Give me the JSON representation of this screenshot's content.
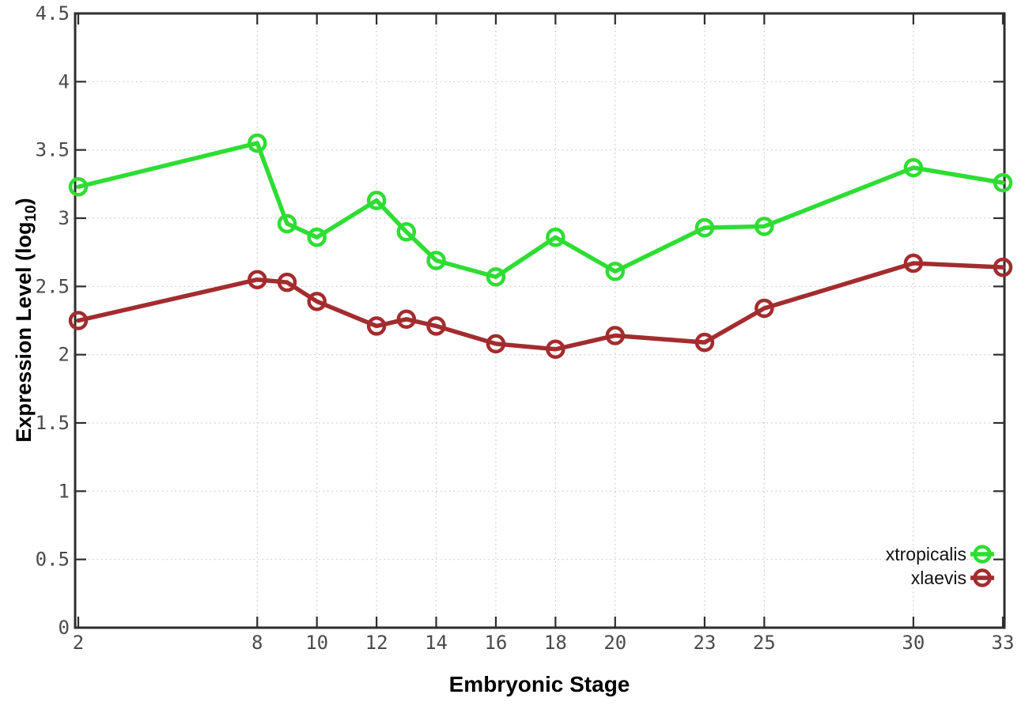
{
  "figure": {
    "background": "#ffffff"
  },
  "chart_data": {
    "type": "line",
    "title": "",
    "xlabel": "Embryonic Stage",
    "ylabel_prefix": "Expression Level (log",
    "ylabel_sub": "10",
    "ylabel_suffix": ")",
    "x": [
      2,
      8,
      9,
      10,
      12,
      13,
      14,
      16,
      18,
      20,
      23,
      25,
      30,
      33
    ],
    "series": [
      {
        "name": "xtropicalis",
        "color": "#2edd33",
        "values": [
          3.23,
          3.55,
          2.96,
          2.86,
          3.13,
          2.9,
          2.69,
          2.57,
          2.86,
          2.61,
          2.93,
          2.94,
          3.37,
          3.26
        ]
      },
      {
        "name": "xlaevis",
        "color": "#a32c2e",
        "values": [
          2.25,
          2.55,
          2.53,
          2.39,
          2.21,
          2.26,
          2.21,
          2.08,
          2.04,
          2.14,
          2.09,
          2.34,
          2.67,
          2.64
        ]
      }
    ],
    "xlim": [
      2,
      33
    ],
    "ylim": [
      0,
      4.5
    ],
    "x_ticks": [
      "2",
      "8",
      "10",
      "12",
      "14",
      "16",
      "18",
      "20",
      "23",
      "25",
      "30",
      "33"
    ],
    "y_ticks": [
      "0",
      "0.5",
      "1",
      "1.5",
      "2",
      "2.5",
      "3",
      "3.5",
      "4",
      "4.5"
    ],
    "grid": true,
    "legend_position": "bottom-right",
    "marker": "open-circle",
    "line_width": 5.5
  }
}
